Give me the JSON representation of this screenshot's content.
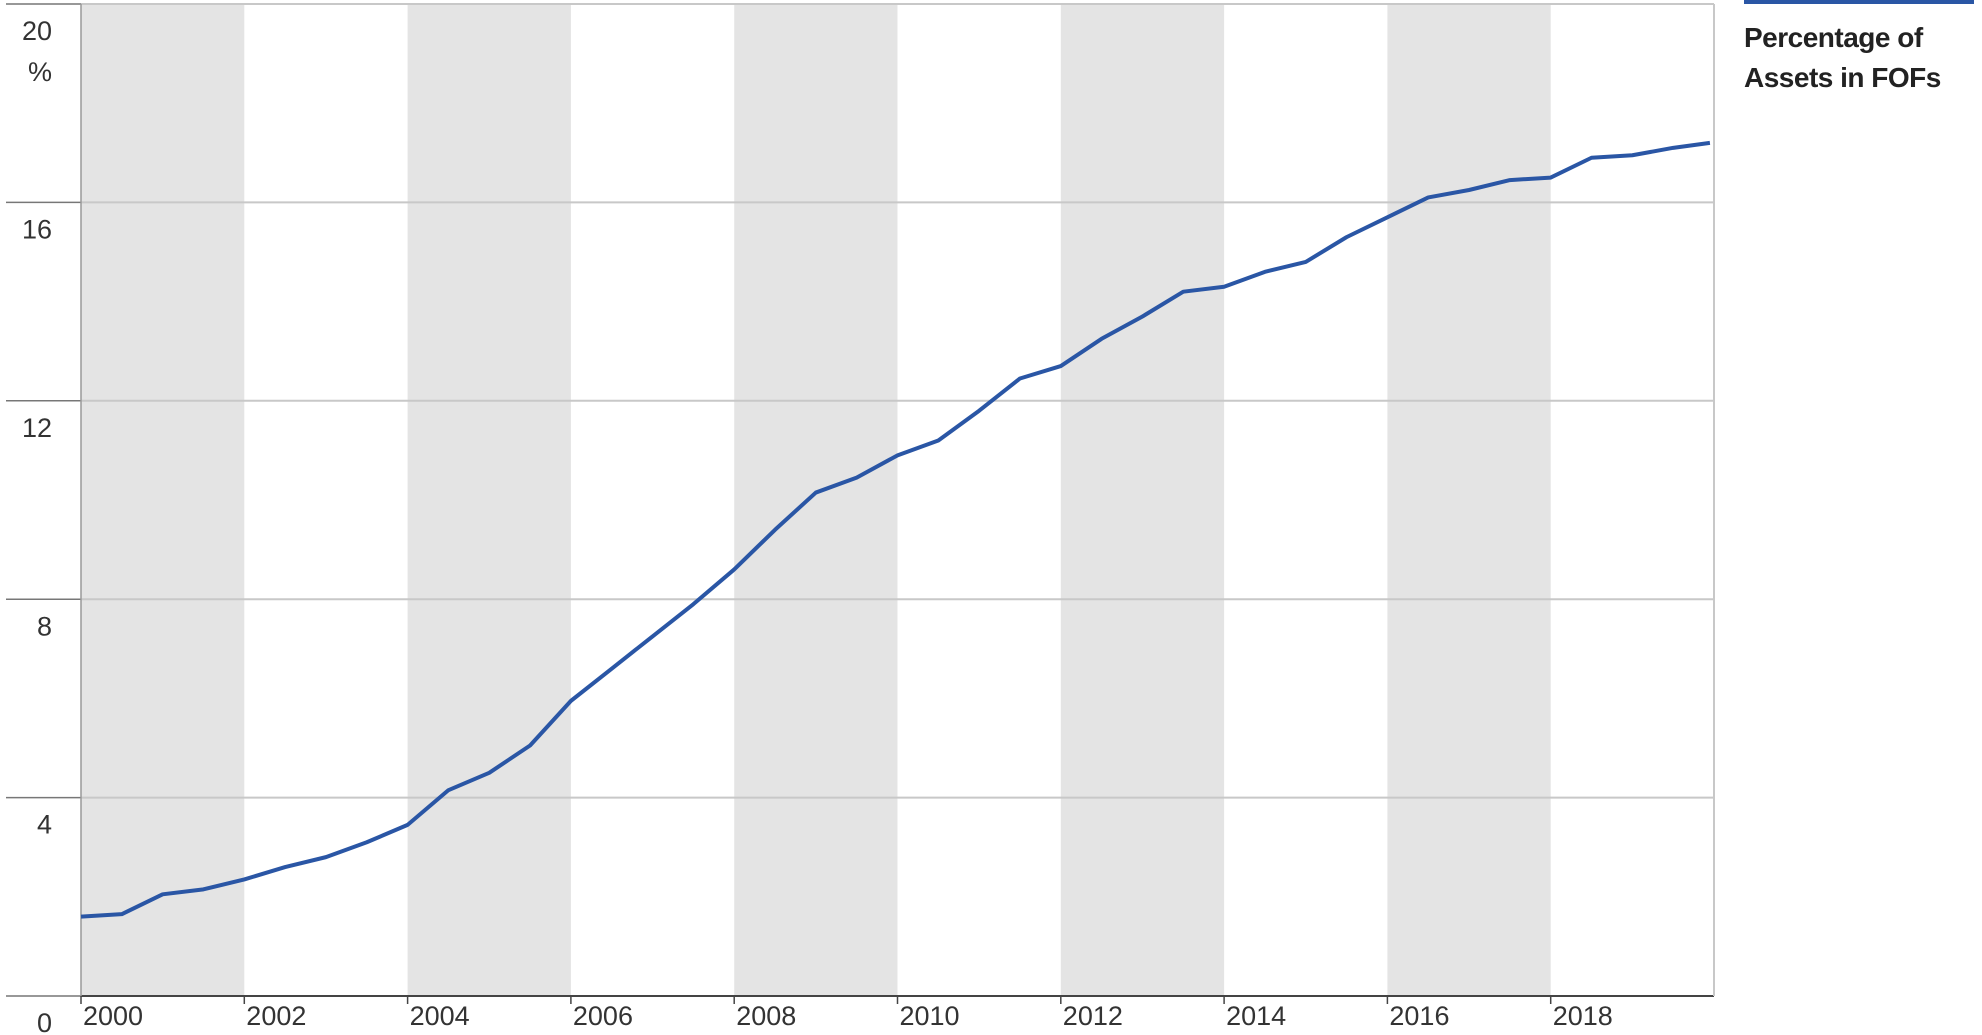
{
  "chart_data": {
    "type": "line",
    "y_unit": "%",
    "x": [
      2000,
      2000.5,
      2001,
      2001.5,
      2002,
      2002.5,
      2003,
      2003.5,
      2004,
      2004.5,
      2005,
      2005.5,
      2006,
      2006.5,
      2007,
      2007.5,
      2008,
      2008.5,
      2009,
      2009.5,
      2010,
      2010.5,
      2011,
      2011.5,
      2012,
      2012.5,
      2013,
      2013.5,
      2014,
      2014.5,
      2015,
      2015.5,
      2016,
      2016.5,
      2017,
      2017.5,
      2018,
      2018.5,
      2019,
      2019.5,
      2019.95
    ],
    "series": [
      {
        "name": "Percentage of Assets in FOFs",
        "color": "#2a56a5",
        "values": [
          1.6,
          1.65,
          2.05,
          2.15,
          2.35,
          2.6,
          2.8,
          3.1,
          3.45,
          4.15,
          4.5,
          5.05,
          5.95,
          6.6,
          7.25,
          7.9,
          8.6,
          9.4,
          10.15,
          10.45,
          10.9,
          11.2,
          11.8,
          12.45,
          12.7,
          13.25,
          13.7,
          14.2,
          14.3,
          14.6,
          14.8,
          15.3,
          15.7,
          16.1,
          16.25,
          16.45,
          16.5,
          16.9,
          16.95,
          17.1,
          17.2
        ]
      }
    ],
    "xlim": [
      2000,
      2020
    ],
    "xticks": [
      2000,
      2002,
      2004,
      2006,
      2008,
      2010,
      2012,
      2014,
      2016,
      2018
    ],
    "ylim": [
      0,
      20
    ],
    "yticks": [
      0,
      4,
      8,
      12,
      16,
      20
    ],
    "grid": true,
    "shaded_bands": true,
    "legend": "top-right"
  }
}
